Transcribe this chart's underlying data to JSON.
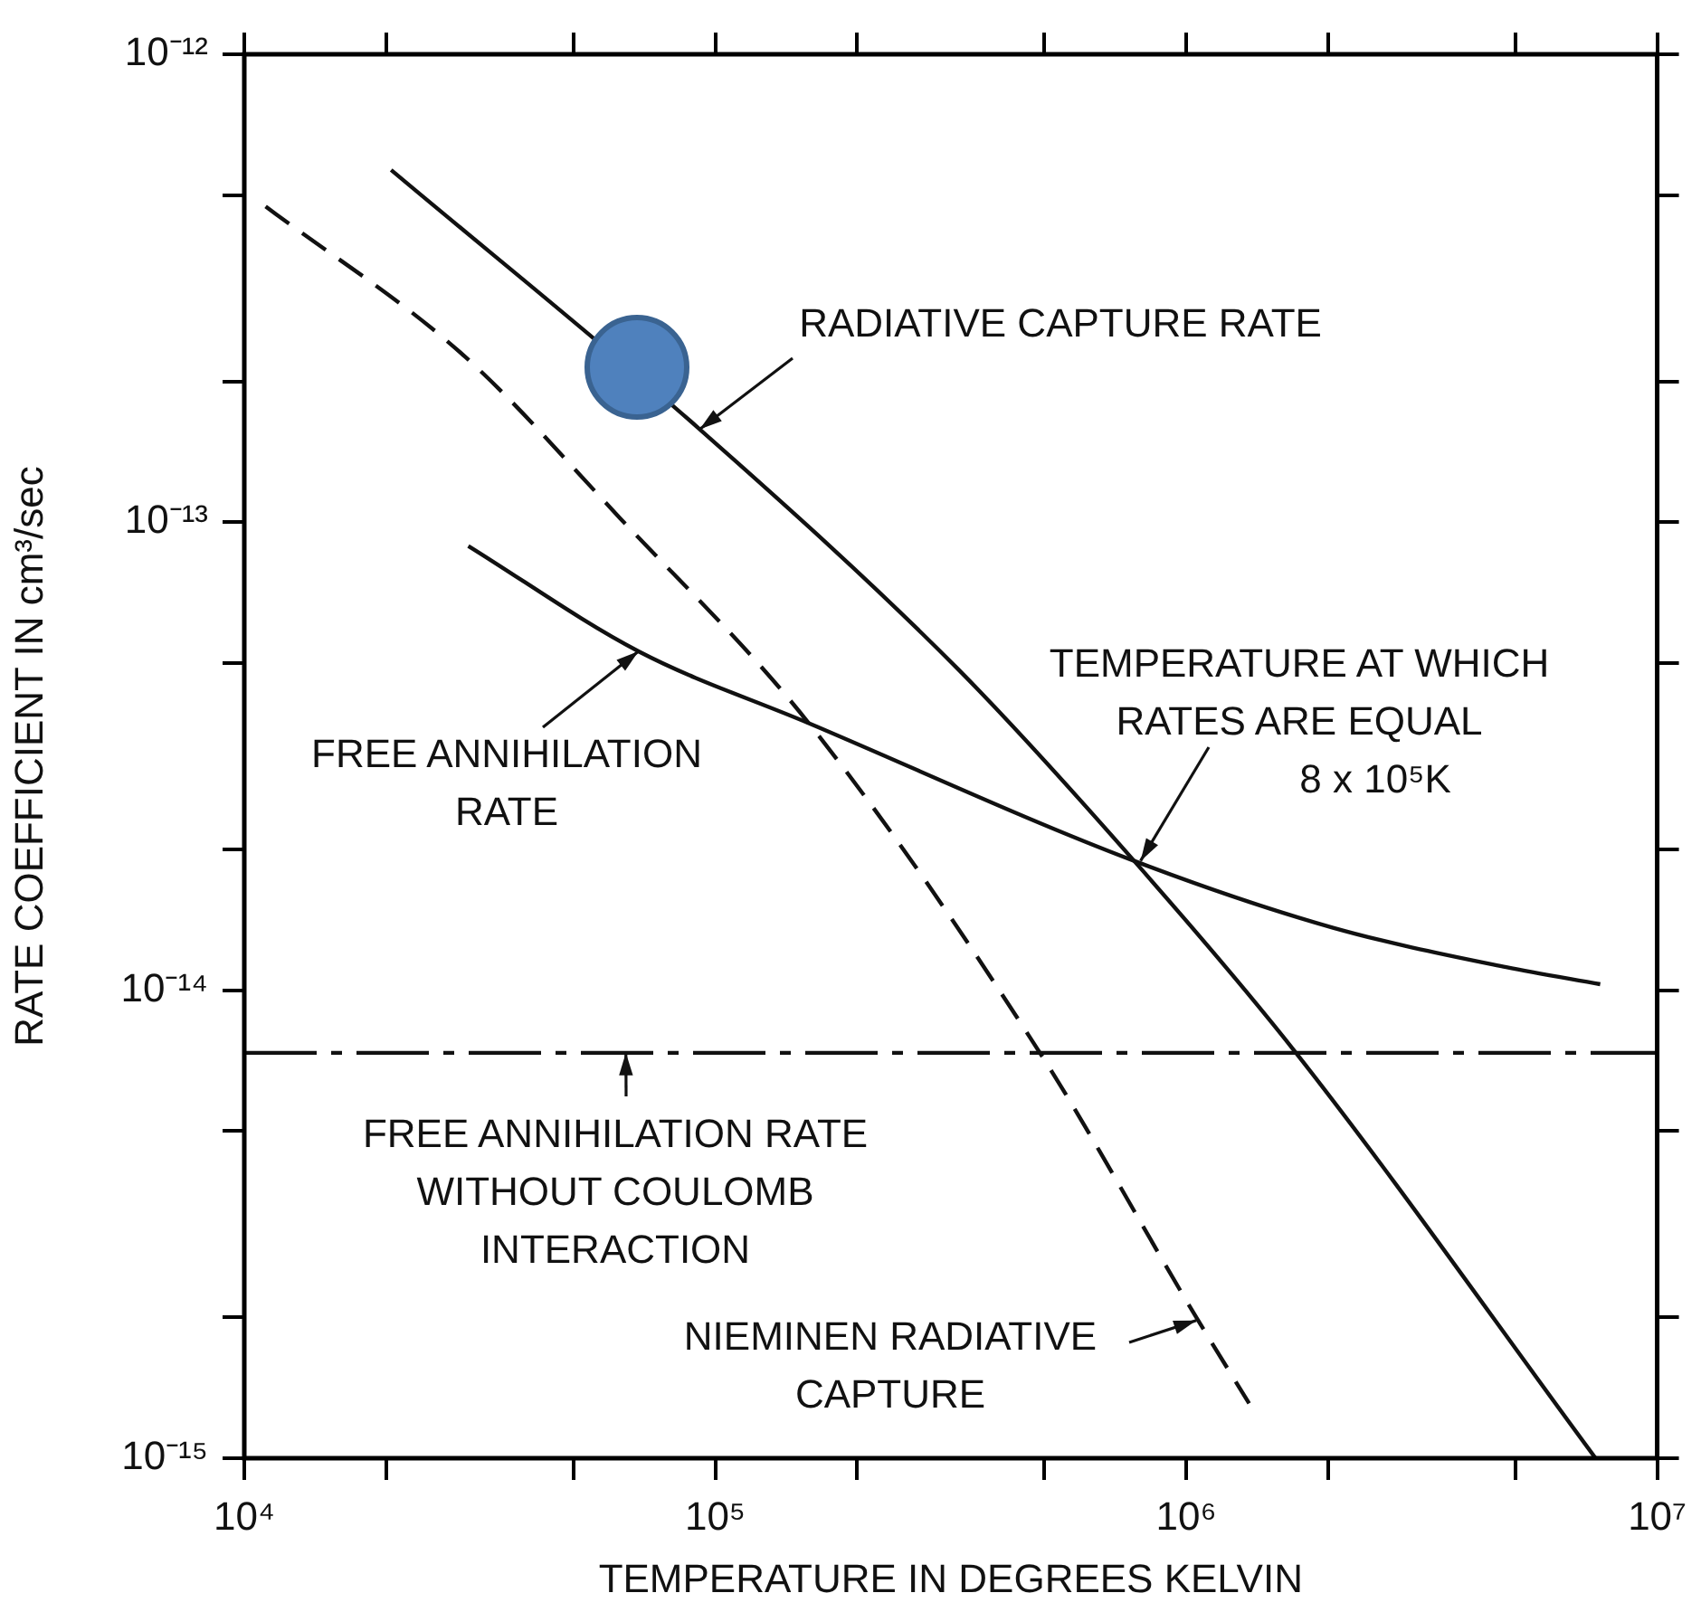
{
  "chart_data": {
    "type": "line",
    "xlabel": "TEMPERATURE IN DEGREES KELVIN",
    "ylabel": "RATE COEFFICIENT IN cm³/sec",
    "log": "xy",
    "xlim": [
      10000,
      10000000
    ],
    "ylim": [
      1e-15,
      1e-12
    ],
    "xticks": [
      {
        "value": 10000,
        "label": "10⁴"
      },
      {
        "value": 20000,
        "label": null
      },
      {
        "value": 50000,
        "label": null
      },
      {
        "value": 100000,
        "label": "10⁵"
      },
      {
        "value": 200000,
        "label": null
      },
      {
        "value": 500000,
        "label": null
      },
      {
        "value": 1000000,
        "label": "10⁶"
      },
      {
        "value": 2000000,
        "label": null
      },
      {
        "value": 5000000,
        "label": null
      },
      {
        "value": 10000000,
        "label": "10⁷"
      }
    ],
    "yticks": [
      {
        "value": 1e-15,
        "label": "10⁻¹⁵"
      },
      {
        "value": 2e-15,
        "label": null
      },
      {
        "value": 5e-15,
        "label": null
      },
      {
        "value": 1e-14,
        "label": "10⁻¹⁴"
      },
      {
        "value": 2e-14,
        "label": null
      },
      {
        "value": 5e-14,
        "label": null
      },
      {
        "value": 1e-13,
        "label": "10⁻¹³"
      },
      {
        "value": 2e-13,
        "label": null
      },
      {
        "value": 5e-13,
        "label": null
      },
      {
        "value": 1e-12,
        "label": "10⁻¹²"
      }
    ],
    "grid": false,
    "legend": false,
    "marker": "none",
    "series": [
      {
        "color": "#111111",
        "line_style": "solid",
        "x": [
          20500,
          92700,
          328000,
          775000,
          1710000,
          7400000
        ],
        "values": [
          5.66e-13,
          1.58e-13,
          4.85e-14,
          1.89e-14,
          7.35e-15,
          1e-15
        ]
      },
      {
        "color": "#111111",
        "line_style": "solid",
        "x": [
          29900,
          68700,
          158000,
          775000,
          2050000,
          4780000,
          7570000
        ],
        "values": [
          8.9e-14,
          5.3e-14,
          3.72e-14,
          1.89e-14,
          1.36e-14,
          1.12e-14,
          1.03e-14
        ]
      },
      {
        "color": "#111111",
        "line_style": "dashed",
        "x": [
          11100,
          29400,
          62800,
          158000,
          489000,
          1060000,
          1360000
        ],
        "values": [
          4.73e-13,
          2.26e-13,
          1.02e-13,
          3.72e-14,
          7.35e-15,
          1.97e-15,
          1.31e-15
        ]
      }
    ],
    "ref_lines": [
      {
        "axis": "y",
        "value": 7.35e-15,
        "line_style": "dashdot",
        "color": "#111111"
      }
    ],
    "annotations": [
      {
        "text": "RADIATIVE CAPTURE RATE",
        "x": 92700,
        "y": 1.58e-13
      },
      {
        "text": "FREE ANNIHILATION RATE",
        "x": 68700,
        "y": 5.3e-14
      },
      {
        "text": "TEMPERATURE AT WHICH RATES ARE EQUAL",
        "x": 800000,
        "y": 1.89e-14
      },
      "8 x 10⁵K",
      {
        "text": "FREE ANNIHILATION RATE WITHOUT COULOMB INTERACTION",
        "x": 64600,
        "y": 7.35e-15
      },
      {
        "text": "NIEMINEN RADIATIVE CAPTURE",
        "x": 1050000,
        "y": 1.97e-15
      }
    ]
  }
}
